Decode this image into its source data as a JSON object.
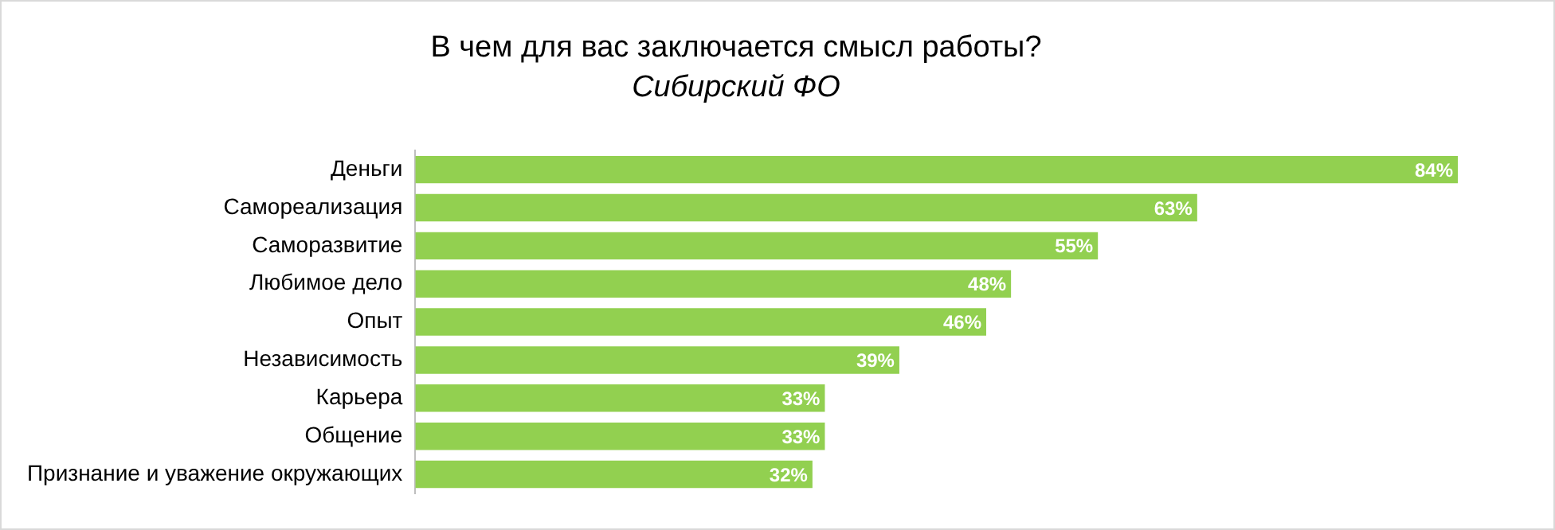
{
  "chart_data": {
    "type": "bar",
    "orientation": "horizontal",
    "title": "В чем для вас заключается смысл работы?",
    "subtitle": "Сибирский ФО",
    "categories": [
      "Деньги",
      "Самореализация",
      "Саморазвитие",
      "Любимое дело",
      "Опыт",
      "Независимость",
      "Карьера",
      "Общение",
      "Признание и уважение окружающих"
    ],
    "values": [
      84,
      63,
      55,
      48,
      46,
      39,
      33,
      33,
      32
    ],
    "value_labels": [
      "84%",
      "63%",
      "55%",
      "48%",
      "46%",
      "39%",
      "33%",
      "33%",
      "32%"
    ],
    "color": "#92d050"
  }
}
